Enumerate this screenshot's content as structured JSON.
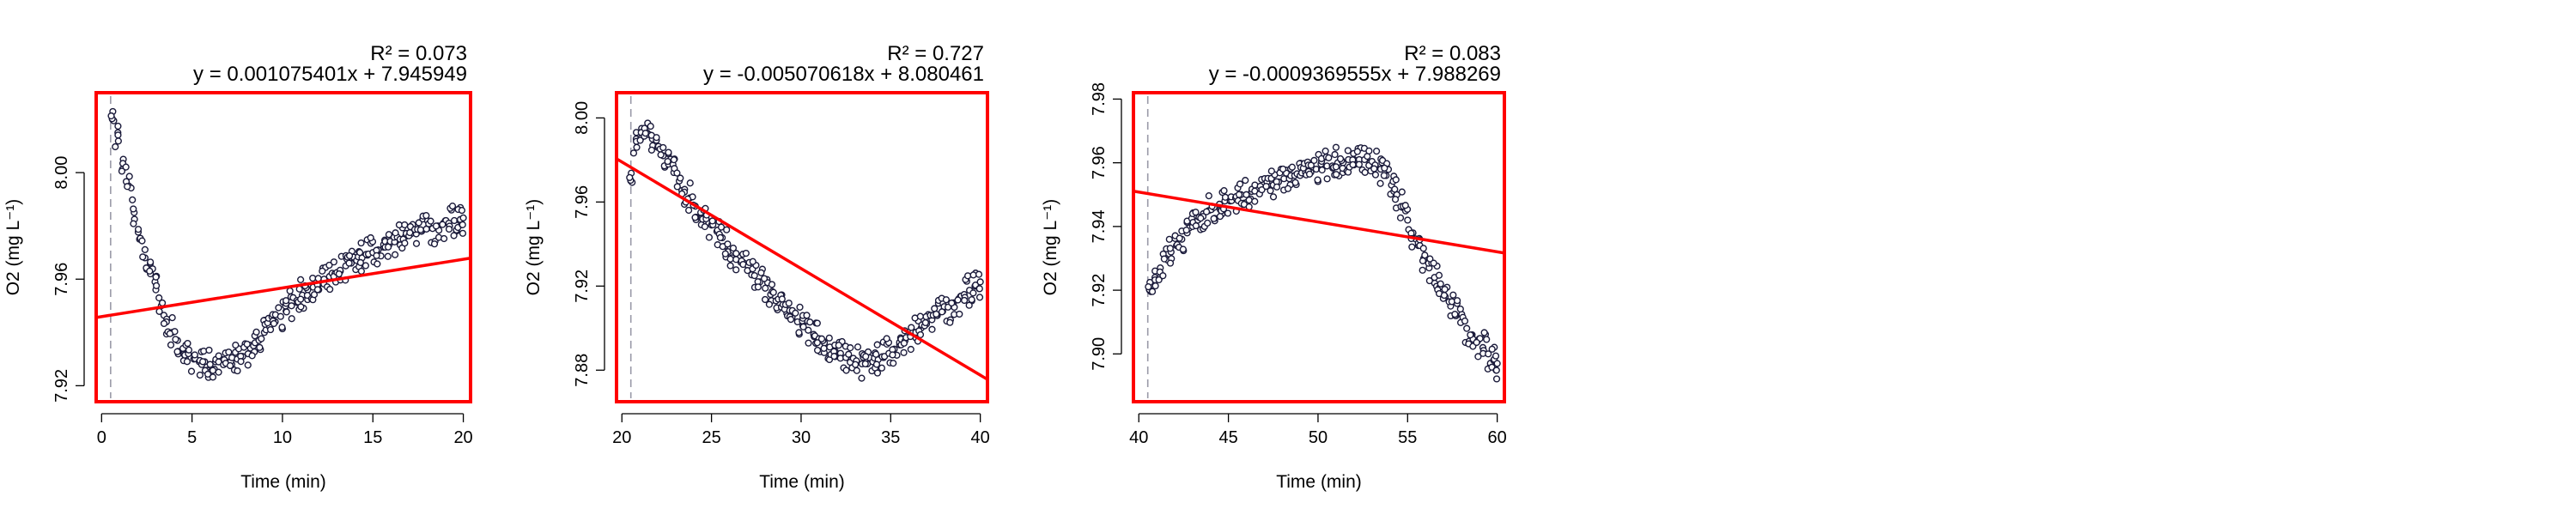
{
  "colors": {
    "frame": "#ff0000",
    "regression_line": "#ff0000",
    "points_stroke": "#1a1a3a",
    "points_fill": "#ffffff",
    "start_marker": "#9a9aa8"
  },
  "chart_data": [
    {
      "type": "scatter",
      "xlabel": "Time (min)",
      "ylabel": "O2 (mg L⁻¹)",
      "r2_label": "R² = 0.073",
      "equation": "y = 0.001075401x + 7.945949",
      "slope": 0.001075401,
      "intercept": 7.945949,
      "xlim": [
        -0.3,
        20.4
      ],
      "ylim": [
        7.914,
        8.03
      ],
      "x_ticks": [
        0,
        5,
        10,
        15,
        20
      ],
      "y_ticks": [
        7.92,
        7.96,
        8.0
      ],
      "y_tick_labels": [
        "7.92",
        "7.96",
        "8.00"
      ],
      "start_line_x": 0.5,
      "points": [
        [
          0.6,
          8.02
        ],
        [
          0.9,
          8.015
        ],
        [
          1.2,
          8.005
        ],
        [
          1.5,
          7.995
        ],
        [
          1.8,
          7.985
        ],
        [
          2.1,
          7.975
        ],
        [
          2.4,
          7.968
        ],
        [
          2.7,
          7.962
        ],
        [
          3.0,
          7.956
        ],
        [
          3.3,
          7.95
        ],
        [
          3.6,
          7.945
        ],
        [
          3.9,
          7.94
        ],
        [
          4.2,
          7.937
        ],
        [
          4.5,
          7.934
        ],
        [
          4.8,
          7.932
        ],
        [
          5.1,
          7.93
        ],
        [
          5.4,
          7.929
        ],
        [
          5.7,
          7.929
        ],
        [
          6.0,
          7.928
        ],
        [
          6.3,
          7.929
        ],
        [
          6.6,
          7.93
        ],
        [
          6.9,
          7.929
        ],
        [
          7.2,
          7.928
        ],
        [
          7.5,
          7.93
        ],
        [
          7.8,
          7.931
        ],
        [
          8.1,
          7.932
        ],
        [
          8.4,
          7.935
        ],
        [
          8.7,
          7.937
        ],
        [
          9.0,
          7.94
        ],
        [
          9.3,
          7.942
        ],
        [
          9.6,
          7.944
        ],
        [
          9.9,
          7.946
        ],
        [
          10.2,
          7.948
        ],
        [
          10.5,
          7.95
        ],
        [
          10.8,
          7.952
        ],
        [
          11.1,
          7.954
        ],
        [
          11.4,
          7.956
        ],
        [
          11.7,
          7.957
        ],
        [
          12.0,
          7.958
        ],
        [
          12.3,
          7.96
        ],
        [
          12.6,
          7.961
        ],
        [
          12.9,
          7.962
        ],
        [
          13.2,
          7.963
        ],
        [
          13.5,
          7.965
        ],
        [
          13.8,
          7.966
        ],
        [
          14.1,
          7.967
        ],
        [
          14.4,
          7.968
        ],
        [
          14.7,
          7.969
        ],
        [
          15.0,
          7.97
        ],
        [
          15.3,
          7.971
        ],
        [
          15.6,
          7.972
        ],
        [
          15.9,
          7.973
        ],
        [
          16.2,
          7.974
        ],
        [
          16.5,
          7.975
        ],
        [
          16.8,
          7.976
        ],
        [
          17.1,
          7.977
        ],
        [
          17.4,
          7.977
        ],
        [
          17.7,
          7.978
        ],
        [
          18.0,
          7.979
        ],
        [
          18.3,
          7.979
        ],
        [
          18.6,
          7.98
        ],
        [
          18.9,
          7.981
        ],
        [
          19.2,
          7.981
        ],
        [
          19.5,
          7.982
        ],
        [
          19.8,
          7.982
        ],
        [
          20.0,
          7.983
        ]
      ]
    },
    {
      "type": "scatter",
      "xlabel": "Time (min)",
      "ylabel": "O2 (mg L⁻¹)",
      "r2_label": "R² = 0.727",
      "equation": "y = -0.005070618x + 8.080461",
      "slope": -0.005070618,
      "intercept": 8.080461,
      "xlim": [
        19.7,
        40.4
      ],
      "ylim": [
        7.865,
        8.012
      ],
      "x_ticks": [
        20,
        25,
        30,
        35,
        40
      ],
      "y_ticks": [
        7.88,
        7.92,
        7.96,
        8.0
      ],
      "y_tick_labels": [
        "7.88",
        "7.92",
        "7.96",
        "8.00"
      ],
      "start_line_x": 20.5,
      "points": [
        [
          20.5,
          7.97
        ],
        [
          20.8,
          7.99
        ],
        [
          21.1,
          7.995
        ],
        [
          21.4,
          7.993
        ],
        [
          21.7,
          7.99
        ],
        [
          22.0,
          7.986
        ],
        [
          22.3,
          7.982
        ],
        [
          22.6,
          7.978
        ],
        [
          22.9,
          7.974
        ],
        [
          23.2,
          7.97
        ],
        [
          23.5,
          7.966
        ],
        [
          23.8,
          7.962
        ],
        [
          24.1,
          7.958
        ],
        [
          24.4,
          7.955
        ],
        [
          24.7,
          7.952
        ],
        [
          25.0,
          7.949
        ],
        [
          25.3,
          7.946
        ],
        [
          25.6,
          7.943
        ],
        [
          25.9,
          7.94
        ],
        [
          26.2,
          7.937
        ],
        [
          26.5,
          7.934
        ],
        [
          26.8,
          7.931
        ],
        [
          27.1,
          7.928
        ],
        [
          27.4,
          7.925
        ],
        [
          27.7,
          7.922
        ],
        [
          28.0,
          7.919
        ],
        [
          28.3,
          7.916
        ],
        [
          28.6,
          7.913
        ],
        [
          28.9,
          7.91
        ],
        [
          29.2,
          7.907
        ],
        [
          29.5,
          7.905
        ],
        [
          29.8,
          7.903
        ],
        [
          30.1,
          7.901
        ],
        [
          30.4,
          7.899
        ],
        [
          30.7,
          7.897
        ],
        [
          31.0,
          7.895
        ],
        [
          31.3,
          7.893
        ],
        [
          31.6,
          7.891
        ],
        [
          31.9,
          7.889
        ],
        [
          32.2,
          7.888
        ],
        [
          32.5,
          7.886
        ],
        [
          32.8,
          7.885
        ],
        [
          33.1,
          7.884
        ],
        [
          33.4,
          7.883
        ],
        [
          33.7,
          7.883
        ],
        [
          34.0,
          7.884
        ],
        [
          34.3,
          7.885
        ],
        [
          34.6,
          7.886
        ],
        [
          34.9,
          7.888
        ],
        [
          35.2,
          7.89
        ],
        [
          35.5,
          7.892
        ],
        [
          35.8,
          7.894
        ],
        [
          36.1,
          7.896
        ],
        [
          36.4,
          7.898
        ],
        [
          36.7,
          7.9
        ],
        [
          37.0,
          7.902
        ],
        [
          37.3,
          7.904
        ],
        [
          37.6,
          7.906
        ],
        [
          37.9,
          7.908
        ],
        [
          38.2,
          7.91
        ],
        [
          38.5,
          7.912
        ],
        [
          38.8,
          7.914
        ],
        [
          39.1,
          7.916
        ],
        [
          39.4,
          7.918
        ],
        [
          39.7,
          7.92
        ],
        [
          40.0,
          7.922
        ]
      ]
    },
    {
      "type": "scatter",
      "xlabel": "Time (min)",
      "ylabel": "O2 (mg L⁻¹)",
      "r2_label": "R² = 0.083",
      "equation": "y = -0.0009369555x + 7.988269",
      "slope": -0.0009369555,
      "intercept": 7.988269,
      "xlim": [
        39.7,
        60.4
      ],
      "ylim": [
        7.885,
        7.982
      ],
      "x_ticks": [
        40,
        45,
        50,
        55,
        60
      ],
      "y_ticks": [
        7.9,
        7.92,
        7.94,
        7.96,
        7.98
      ],
      "y_tick_labels": [
        "7.90",
        "7.92",
        "7.94",
        "7.96",
        "7.98"
      ],
      "start_line_x": 40.5,
      "points": [
        [
          40.6,
          7.92
        ],
        [
          40.9,
          7.924
        ],
        [
          41.2,
          7.927
        ],
        [
          41.5,
          7.93
        ],
        [
          41.8,
          7.932
        ],
        [
          42.1,
          7.934
        ],
        [
          42.4,
          7.936
        ],
        [
          42.7,
          7.938
        ],
        [
          43.0,
          7.94
        ],
        [
          43.3,
          7.942
        ],
        [
          43.6,
          7.944
        ],
        [
          43.9,
          7.945
        ],
        [
          44.2,
          7.946
        ],
        [
          44.5,
          7.947
        ],
        [
          44.8,
          7.948
        ],
        [
          45.1,
          7.948
        ],
        [
          45.4,
          7.949
        ],
        [
          45.7,
          7.95
        ],
        [
          46.0,
          7.95
        ],
        [
          46.3,
          7.951
        ],
        [
          46.6,
          7.952
        ],
        [
          46.9,
          7.952
        ],
        [
          47.2,
          7.953
        ],
        [
          47.5,
          7.953
        ],
        [
          47.8,
          7.954
        ],
        [
          48.1,
          7.955
        ],
        [
          48.4,
          7.955
        ],
        [
          48.7,
          7.956
        ],
        [
          49.0,
          7.956
        ],
        [
          49.3,
          7.957
        ],
        [
          49.6,
          7.957
        ],
        [
          49.9,
          7.958
        ],
        [
          50.2,
          7.958
        ],
        [
          50.5,
          7.959
        ],
        [
          50.8,
          7.959
        ],
        [
          51.1,
          7.96
        ],
        [
          51.4,
          7.96
        ],
        [
          51.7,
          7.961
        ],
        [
          52.0,
          7.961
        ],
        [
          52.3,
          7.961
        ],
        [
          52.6,
          7.961
        ],
        [
          52.9,
          7.96
        ],
        [
          53.2,
          7.959
        ],
        [
          53.5,
          7.958
        ],
        [
          53.8,
          7.956
        ],
        [
          54.1,
          7.953
        ],
        [
          54.4,
          7.95
        ],
        [
          54.7,
          7.946
        ],
        [
          55.0,
          7.942
        ],
        [
          55.3,
          7.938
        ],
        [
          55.6,
          7.934
        ],
        [
          55.9,
          7.93
        ],
        [
          56.2,
          7.927
        ],
        [
          56.5,
          7.924
        ],
        [
          56.8,
          7.921
        ],
        [
          57.1,
          7.918
        ],
        [
          57.4,
          7.915
        ],
        [
          57.7,
          7.912
        ],
        [
          58.0,
          7.91
        ],
        [
          58.3,
          7.908
        ],
        [
          58.6,
          7.906
        ],
        [
          58.9,
          7.904
        ],
        [
          59.2,
          7.902
        ],
        [
          59.5,
          7.9
        ],
        [
          59.8,
          7.898
        ],
        [
          60.0,
          7.897
        ]
      ]
    }
  ]
}
